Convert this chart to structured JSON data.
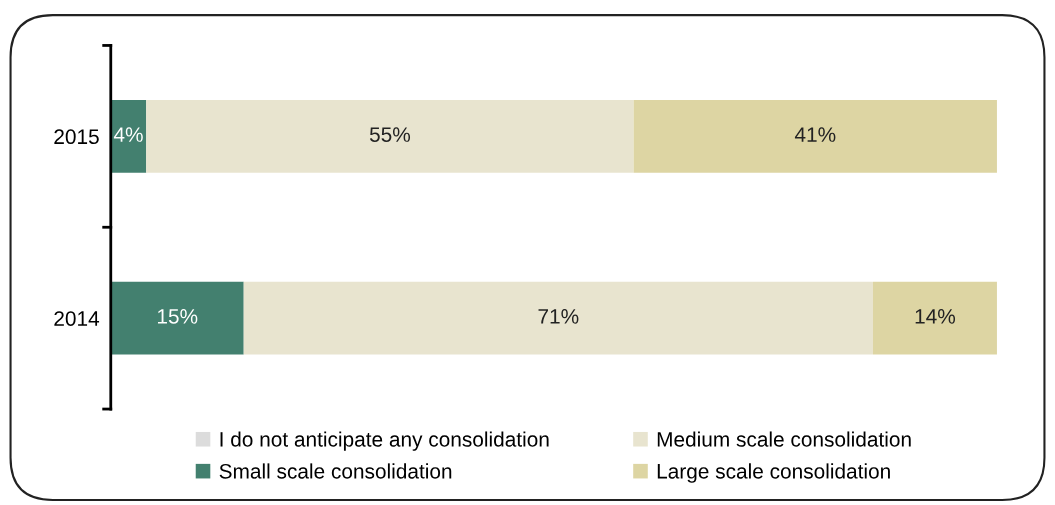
{
  "chart_data": {
    "type": "bar",
    "orientation": "horizontal",
    "stacked": true,
    "categories": [
      "2015",
      "2014"
    ],
    "series": [
      {
        "name": "I do not anticipate any consolidation",
        "color": "#dcdcdc",
        "values": [
          0,
          0
        ],
        "value_labels": [
          null,
          null
        ]
      },
      {
        "name": "Small scale consolidation",
        "color": "#43806f",
        "values": [
          4,
          15
        ],
        "value_labels": [
          "4%",
          "15%"
        ]
      },
      {
        "name": "Medium scale consolidation",
        "color": "#e8e4cf",
        "values": [
          55,
          71
        ],
        "value_labels": [
          "55%",
          "71%"
        ]
      },
      {
        "name": "Large scale consolidation",
        "color": "#ddd5a3",
        "values": [
          41,
          14
        ],
        "value_labels": [
          "41%",
          "14%"
        ]
      }
    ],
    "xlim": [
      0,
      100
    ],
    "tick_labels": "y",
    "grid": false,
    "legend": "bottom"
  }
}
